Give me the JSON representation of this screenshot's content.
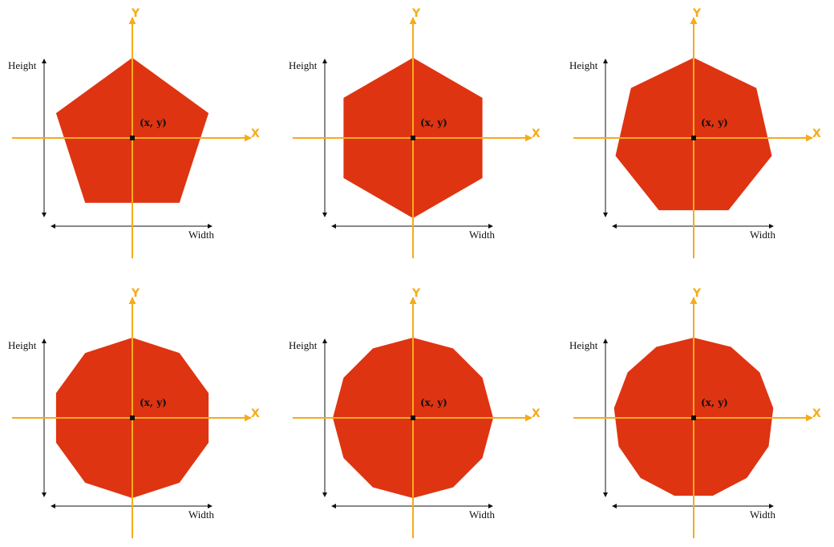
{
  "colors": {
    "shape_fill": "#df3411",
    "axis": "#f5ab1a",
    "dimension_line": "#111111",
    "center_point": "#111111"
  },
  "labels": {
    "height": "Height",
    "width": "Width",
    "center": "(x, y)",
    "x_axis": "X",
    "y_axis": "Y"
  },
  "panels": [
    {
      "name": "pentagon",
      "sides": 5
    },
    {
      "name": "hexagon",
      "sides": 6
    },
    {
      "name": "heptagon",
      "sides": 7
    },
    {
      "name": "decagon",
      "sides": 10
    },
    {
      "name": "dodecagon",
      "sides": 12
    },
    {
      "name": "tridecagon",
      "sides": 13
    }
  ]
}
